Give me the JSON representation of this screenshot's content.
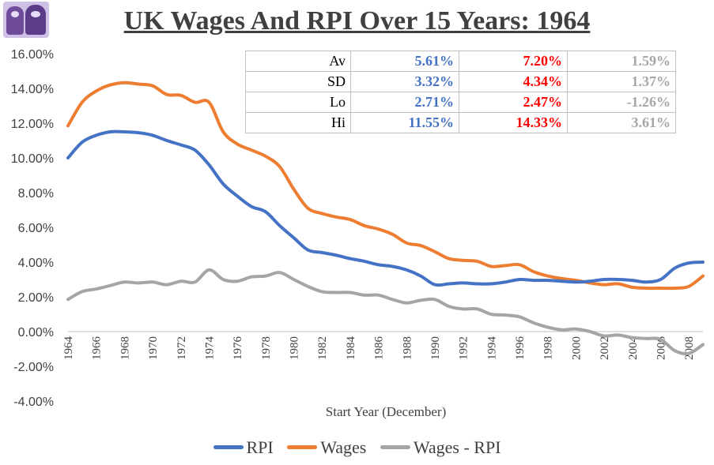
{
  "chart_data": {
    "type": "line",
    "title": "UK Wages And RPI Over 15 Years: 1964",
    "xlabel": "Start Year (December)",
    "ylabel": "",
    "ylim": [
      -4,
      16
    ],
    "y_ticks": [
      "16.00%",
      "14.00%",
      "12.00%",
      "10.00%",
      "8.00%",
      "6.00%",
      "4.00%",
      "2.00%",
      "0.00%",
      "-2.00%",
      "-4.00%"
    ],
    "x_ticks": [
      "1964",
      "1966",
      "1968",
      "1970",
      "1972",
      "1974",
      "1976",
      "1978",
      "1980",
      "1982",
      "1984",
      "1986",
      "1988",
      "1990",
      "1992",
      "1994",
      "1996",
      "1998",
      "2000",
      "2002",
      "2004",
      "2006",
      "2008"
    ],
    "x": [
      1964,
      1965,
      1966,
      1967,
      1968,
      1969,
      1970,
      1971,
      1972,
      1973,
      1974,
      1975,
      1976,
      1977,
      1978,
      1979,
      1980,
      1981,
      1982,
      1983,
      1984,
      1985,
      1986,
      1987,
      1988,
      1989,
      1990,
      1991,
      1992,
      1993,
      1994,
      1995,
      1996,
      1997,
      1998,
      1999,
      2000,
      2001,
      2002,
      2003,
      2004,
      2005,
      2006,
      2007,
      2008,
      2009
    ],
    "series": [
      {
        "name": "RPI",
        "color": "#4472c4",
        "values": [
          10.0,
          10.9,
          11.3,
          11.5,
          11.5,
          11.45,
          11.3,
          11.0,
          10.75,
          10.45,
          9.6,
          8.5,
          7.8,
          7.2,
          6.9,
          6.1,
          5.4,
          4.7,
          4.55,
          4.4,
          4.2,
          4.05,
          3.85,
          3.75,
          3.55,
          3.2,
          2.7,
          2.75,
          2.8,
          2.75,
          2.75,
          2.85,
          3.0,
          2.95,
          2.95,
          2.9,
          2.85,
          2.9,
          3.0,
          3.0,
          2.95,
          2.85,
          3.0,
          3.65,
          3.95,
          4.0
        ]
      },
      {
        "name": "Wages",
        "color": "#ed7d31",
        "values": [
          11.85,
          13.2,
          13.85,
          14.2,
          14.33,
          14.25,
          14.15,
          13.65,
          13.6,
          13.2,
          13.2,
          11.5,
          10.8,
          10.45,
          10.1,
          9.5,
          8.2,
          7.1,
          6.8,
          6.6,
          6.45,
          6.1,
          5.9,
          5.6,
          5.1,
          4.95,
          4.6,
          4.2,
          4.1,
          4.05,
          3.75,
          3.8,
          3.85,
          3.45,
          3.2,
          3.05,
          2.95,
          2.8,
          2.7,
          2.75,
          2.55,
          2.5,
          2.5,
          2.5,
          2.6,
          3.2
        ]
      },
      {
        "name": "Wages - RPI",
        "color": "#a5a5a5",
        "values": [
          1.85,
          2.3,
          2.45,
          2.65,
          2.85,
          2.8,
          2.85,
          2.7,
          2.9,
          2.85,
          3.55,
          3.0,
          2.9,
          3.15,
          3.2,
          3.4,
          3.0,
          2.6,
          2.3,
          2.25,
          2.25,
          2.1,
          2.1,
          1.85,
          1.65,
          1.8,
          1.85,
          1.45,
          1.3,
          1.3,
          1.0,
          0.95,
          0.85,
          0.5,
          0.25,
          0.1,
          0.15,
          0.0,
          -0.25,
          -0.2,
          -0.35,
          -0.4,
          -0.45,
          -1.1,
          -1.26,
          -0.75
        ]
      }
    ],
    "stats_table": {
      "rows": [
        {
          "label": "Av",
          "rpi": "5.61%",
          "wages": "7.20%",
          "diff": "1.59%"
        },
        {
          "label": "SD",
          "rpi": "3.32%",
          "wages": "4.34%",
          "diff": "1.37%"
        },
        {
          "label": "Lo",
          "rpi": "2.71%",
          "wages": "2.47%",
          "diff": "-1.26%"
        },
        {
          "label": "Hi",
          "rpi": "11.55%",
          "wages": "14.33%",
          "diff": "3.61%"
        }
      ]
    }
  },
  "colors": {
    "text": "#404040",
    "rpi": "#4472c4",
    "wages": "#ed7d31",
    "diff": "#a5a5a5",
    "rpi_stat": "#4472c4",
    "wages_stat": "#ff0000",
    "diff_stat": "#a6a6a6"
  }
}
